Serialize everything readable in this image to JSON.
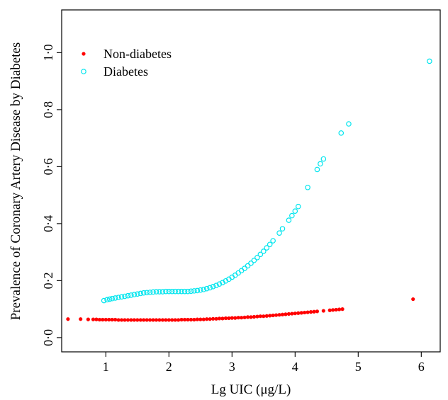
{
  "chart_data": {
    "type": "scatter",
    "xlabel": "Lg UIC (μg/L)",
    "ylabel": "Prevalence of Coronary Artery Disease by Diabetes",
    "xlim": [
      0.3,
      6.3
    ],
    "ylim": [
      -0.05,
      1.15
    ],
    "xticks": [
      1,
      2,
      3,
      4,
      5,
      6
    ],
    "yticks": [
      0.0,
      0.2,
      0.4,
      0.6,
      0.8,
      1.0
    ],
    "ytick_labels": [
      "0·0",
      "0·2",
      "0·4",
      "0·6",
      "0·8",
      "1·0"
    ],
    "grid": false,
    "legend_position": "top-left",
    "series": [
      {
        "name": "Non-diabetes",
        "marker": "filled-circle",
        "color": "#ff0000",
        "x": [
          0.4,
          0.6,
          0.72,
          0.8,
          0.85,
          0.9,
          0.95,
          1.0,
          1.05,
          1.1,
          1.15,
          1.2,
          1.25,
          1.3,
          1.35,
          1.4,
          1.45,
          1.5,
          1.55,
          1.6,
          1.65,
          1.7,
          1.75,
          1.8,
          1.85,
          1.9,
          1.95,
          2.0,
          2.05,
          2.1,
          2.15,
          2.2,
          2.25,
          2.3,
          2.35,
          2.4,
          2.45,
          2.5,
          2.55,
          2.6,
          2.65,
          2.7,
          2.75,
          2.8,
          2.85,
          2.9,
          2.95,
          3.0,
          3.05,
          3.1,
          3.15,
          3.2,
          3.25,
          3.3,
          3.35,
          3.4,
          3.45,
          3.5,
          3.55,
          3.6,
          3.65,
          3.7,
          3.75,
          3.8,
          3.85,
          3.9,
          3.95,
          4.0,
          4.05,
          4.1,
          4.15,
          4.2,
          4.25,
          4.3,
          4.35,
          4.45,
          4.55,
          4.6,
          4.65,
          4.7,
          4.75,
          5.87
        ],
        "y": [
          0.065,
          0.065,
          0.064,
          0.064,
          0.064,
          0.063,
          0.063,
          0.063,
          0.063,
          0.063,
          0.063,
          0.062,
          0.062,
          0.062,
          0.062,
          0.062,
          0.062,
          0.062,
          0.062,
          0.062,
          0.062,
          0.062,
          0.062,
          0.062,
          0.062,
          0.062,
          0.062,
          0.062,
          0.062,
          0.062,
          0.062,
          0.063,
          0.063,
          0.063,
          0.063,
          0.063,
          0.064,
          0.064,
          0.064,
          0.065,
          0.065,
          0.066,
          0.066,
          0.067,
          0.067,
          0.068,
          0.068,
          0.069,
          0.069,
          0.07,
          0.07,
          0.071,
          0.072,
          0.072,
          0.073,
          0.074,
          0.075,
          0.075,
          0.076,
          0.077,
          0.078,
          0.079,
          0.08,
          0.081,
          0.082,
          0.083,
          0.084,
          0.085,
          0.086,
          0.087,
          0.088,
          0.089,
          0.09,
          0.091,
          0.092,
          0.094,
          0.096,
          0.097,
          0.098,
          0.099,
          0.1,
          0.135
        ]
      },
      {
        "name": "Diabetes",
        "marker": "open-circle",
        "color": "#00e5ee",
        "x": [
          0.97,
          1.02,
          1.06,
          1.1,
          1.15,
          1.2,
          1.25,
          1.3,
          1.35,
          1.4,
          1.45,
          1.5,
          1.55,
          1.6,
          1.65,
          1.7,
          1.75,
          1.8,
          1.85,
          1.9,
          1.95,
          2.0,
          2.05,
          2.1,
          2.15,
          2.2,
          2.25,
          2.3,
          2.35,
          2.4,
          2.45,
          2.5,
          2.55,
          2.6,
          2.65,
          2.7,
          2.75,
          2.8,
          2.85,
          2.9,
          2.95,
          3.0,
          3.05,
          3.1,
          3.15,
          3.2,
          3.25,
          3.3,
          3.35,
          3.4,
          3.45,
          3.5,
          3.55,
          3.6,
          3.65,
          3.75,
          3.8,
          3.9,
          3.95,
          4.0,
          4.05,
          4.2,
          4.35,
          4.4,
          4.45,
          4.73,
          4.85,
          6.13
        ],
        "y": [
          0.13,
          0.133,
          0.135,
          0.137,
          0.139,
          0.141,
          0.143,
          0.145,
          0.147,
          0.149,
          0.151,
          0.153,
          0.155,
          0.157,
          0.158,
          0.159,
          0.16,
          0.161,
          0.161,
          0.161,
          0.162,
          0.162,
          0.162,
          0.162,
          0.162,
          0.162,
          0.162,
          0.162,
          0.163,
          0.164,
          0.165,
          0.167,
          0.169,
          0.172,
          0.175,
          0.179,
          0.183,
          0.188,
          0.193,
          0.199,
          0.205,
          0.212,
          0.219,
          0.227,
          0.235,
          0.243,
          0.252,
          0.261,
          0.271,
          0.281,
          0.292,
          0.303,
          0.315,
          0.327,
          0.34,
          0.367,
          0.382,
          0.412,
          0.428,
          0.444,
          0.46,
          0.527,
          0.59,
          0.61,
          0.627,
          0.718,
          0.75,
          0.97
        ]
      }
    ]
  }
}
